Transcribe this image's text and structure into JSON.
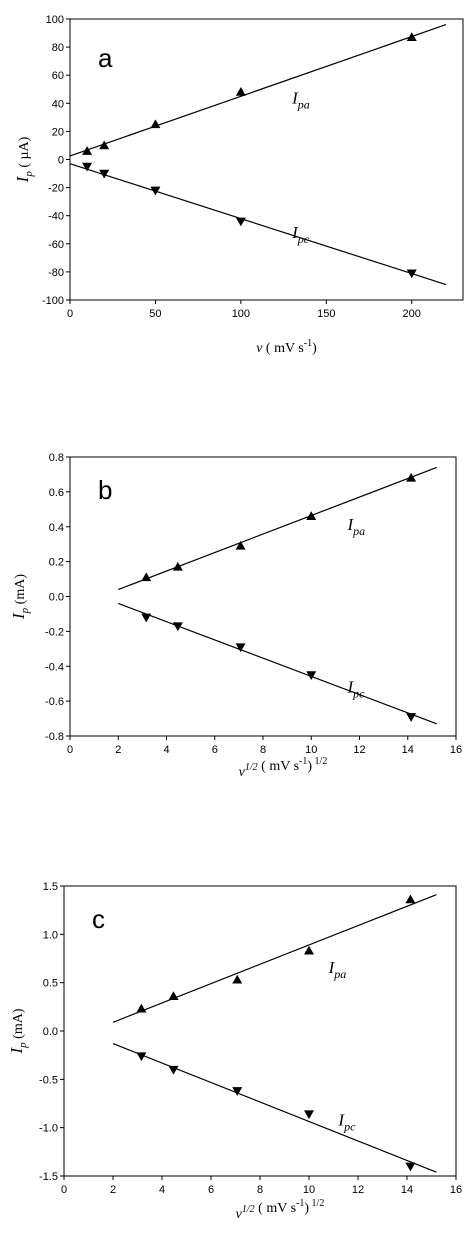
{
  "chart_data": [
    {
      "type": "scatter",
      "panel_label": "a",
      "xlabel": {
        "main": "v",
        "rest": " ( mV s",
        "sup": "-1",
        "tail": ")"
      },
      "ylabel": {
        "main": "I",
        "sub": "p",
        "rest": " ( µA)"
      },
      "xlim": [
        0,
        230
      ],
      "ylim": [
        -100,
        100
      ],
      "xticks": [
        0,
        50,
        100,
        150,
        200
      ],
      "yticks": [
        -100,
        -80,
        -60,
        -40,
        -20,
        0,
        20,
        40,
        60,
        80,
        100
      ],
      "series": [
        {
          "name": "I",
          "name_sub": "pa",
          "marker": "triangle-up",
          "x": [
            10,
            20,
            50,
            100,
            200
          ],
          "y": [
            6,
            10,
            25,
            48,
            87
          ],
          "fit": {
            "x": [
              0,
              220
            ],
            "y": [
              2.5,
              96
            ]
          }
        },
        {
          "name": "I",
          "name_sub": "pc",
          "marker": "triangle-down",
          "x": [
            10,
            20,
            50,
            100,
            200
          ],
          "y": [
            -5,
            -10,
            -22,
            -44,
            -81
          ],
          "fit": {
            "x": [
              0,
              220
            ],
            "y": [
              -3,
              -89
            ]
          }
        }
      ],
      "series_label_pos": [
        [
          130,
          40
        ],
        [
          130,
          -56
        ]
      ],
      "grid": false
    },
    {
      "type": "scatter",
      "panel_label": "b",
      "xlabel": {
        "main": "v",
        "sup_main": "1/2",
        "rest": " ( mV s",
        "sup": "-1",
        "tail": ")",
        "sup2": " 1/2"
      },
      "ylabel": {
        "main": "I",
        "sub": "p",
        "rest": " (mA)"
      },
      "xlim": [
        0,
        16
      ],
      "ylim": [
        -0.8,
        0.8
      ],
      "xticks": [
        0,
        2,
        4,
        6,
        8,
        10,
        12,
        14,
        16
      ],
      "yticks": [
        -0.8,
        -0.6,
        -0.4,
        -0.2,
        0.0,
        0.2,
        0.4,
        0.6,
        0.8
      ],
      "series": [
        {
          "name": "I",
          "name_sub": "pa",
          "marker": "triangle-up",
          "x": [
            3.16,
            4.47,
            7.07,
            10.0,
            14.14
          ],
          "y": [
            0.11,
            0.17,
            0.29,
            0.46,
            0.68
          ],
          "fit": {
            "x": [
              2.0,
              15.2
            ],
            "y": [
              0.04,
              0.74
            ]
          }
        },
        {
          "name": "I",
          "name_sub": "pc",
          "marker": "triangle-down",
          "x": [
            3.16,
            4.47,
            7.07,
            10.0,
            14.14
          ],
          "y": [
            -0.12,
            -0.17,
            -0.29,
            -0.45,
            -0.69
          ],
          "fit": {
            "x": [
              2.0,
              15.2
            ],
            "y": [
              -0.04,
              -0.73
            ]
          }
        }
      ],
      "series_label_pos": [
        [
          11.5,
          0.38
        ],
        [
          11.5,
          -0.55
        ]
      ],
      "grid": false
    },
    {
      "type": "scatter",
      "panel_label": "c",
      "xlabel": {
        "main": "v",
        "sup_main": "1/2",
        "rest": " ( mV s",
        "sup": "-1",
        "tail": ")",
        "sup2": " 1/2"
      },
      "ylabel": {
        "main": "I",
        "sub": "p",
        "rest": " (mA)"
      },
      "xlim": [
        0,
        16
      ],
      "ylim": [
        -1.5,
        1.5
      ],
      "xticks": [
        0,
        2,
        4,
        6,
        8,
        10,
        12,
        14,
        16
      ],
      "yticks": [
        -1.5,
        -1.0,
        -0.5,
        0.0,
        0.5,
        1.0,
        1.5
      ],
      "series": [
        {
          "name": "I",
          "name_sub": "pa",
          "marker": "triangle-up",
          "x": [
            3.16,
            4.47,
            7.07,
            10.0,
            14.14
          ],
          "y": [
            0.23,
            0.36,
            0.53,
            0.83,
            1.36
          ],
          "fit": {
            "x": [
              2.0,
              15.2
            ],
            "y": [
              0.09,
              1.41
            ]
          }
        },
        {
          "name": "I",
          "name_sub": "pc",
          "marker": "triangle-down",
          "x": [
            3.16,
            4.47,
            7.07,
            10.0,
            14.14
          ],
          "y": [
            -0.26,
            -0.4,
            -0.62,
            -0.86,
            -1.4
          ],
          "fit": {
            "x": [
              2.0,
              15.2
            ],
            "y": [
              -0.13,
              -1.46
            ]
          }
        }
      ],
      "series_label_pos": [
        [
          10.8,
          0.6
        ],
        [
          11.2,
          -0.98
        ]
      ],
      "grid": false
    }
  ]
}
